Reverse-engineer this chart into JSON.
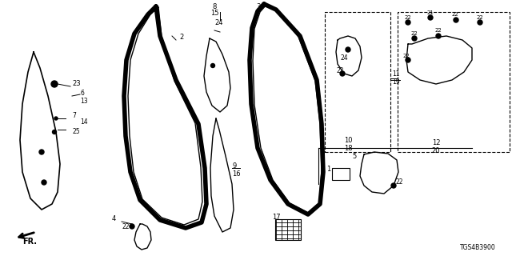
{
  "bg_color": "#ffffff",
  "diagram_id": "TGS4B3900",
  "fig_width": 6.4,
  "fig_height": 3.2,
  "dpi": 100
}
